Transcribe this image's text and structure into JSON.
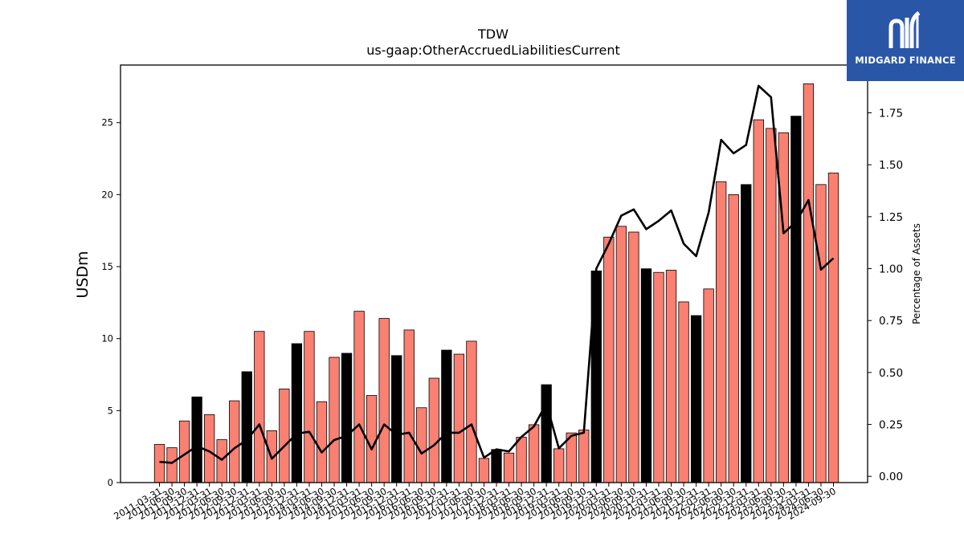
{
  "logo": {
    "name": "MIDGARD FINANCE"
  },
  "colors": {
    "bar": "#fa8072",
    "year_end_bar": "#000000",
    "line": "#000000"
  },
  "chart_data": {
    "type": "bar",
    "title": "TDW",
    "subtitle": "us-gaap:OtherAccruedLiabilitiesCurrent",
    "ylabel": "USDm",
    "y2label": "Percentage of Assets",
    "ylim": [
      0,
      29
    ],
    "y2lim": [
      -0.03,
      1.98
    ],
    "yticks": [
      0,
      5,
      10,
      15,
      20,
      25
    ],
    "y2ticks": [
      "0.00",
      "0.25",
      "0.50",
      "0.75",
      "1.00",
      "1.25",
      "1.50",
      "1.75"
    ],
    "grid": false,
    "categories": [
      "2011-03-31",
      "2011-06-30",
      "2011-09-30",
      "2011-12-31",
      "2012-03-31",
      "2012-06-30",
      "2012-09-30",
      "2012-12-31",
      "2013-03-31",
      "2013-06-30",
      "2013-09-30",
      "2013-12-31",
      "2014-03-31",
      "2014-06-30",
      "2014-09-30",
      "2014-12-31",
      "2015-03-31",
      "2015-06-30",
      "2015-09-30",
      "2015-12-31",
      "2016-03-31",
      "2016-06-30",
      "2016-09-30",
      "2016-12-31",
      "2017-03-31",
      "2017-06-30",
      "2017-09-30",
      "2017-12-31",
      "2018-03-31",
      "2018-06-30",
      "2018-09-30",
      "2018-12-31",
      "2019-03-31",
      "2019-06-30",
      "2019-09-30",
      "2019-12-31",
      "2020-03-31",
      "2020-06-30",
      "2020-09-30",
      "2020-12-31",
      "2021-03-31",
      "2021-06-30",
      "2021-09-30",
      "2021-12-31",
      "2022-03-31",
      "2022-06-30",
      "2022-09-30",
      "2022-12-31",
      "2023-03-31",
      "2023-06-30",
      "2023-09-30",
      "2023-12-31",
      "2024-03-31",
      "2024-06-30",
      "2024-09-30"
    ],
    "xtick_labels": [
      "2011-03-31",
      "2011-06-30",
      "2011-09-30",
      "2011-12-31",
      "2012-03-31",
      "2012-06-30",
      "2012-09-30",
      "2012-12-31",
      "2013-03-31",
      "2013-06-30",
      "2013-09-30",
      "2013-12-31",
      "2014-03-31",
      "2014-06-30",
      "2014-09-30",
      "2014-12-31",
      "2015-03-31",
      "2015-06-30",
      "2015-09-30",
      "2015-12-31",
      "2016-03-31",
      "2016-06-30",
      "2016-09-30",
      "2016-12-31",
      "2017-03-31",
      "2017-06-30",
      "2017-09-30",
      "2017-12-31",
      "2018-03-31",
      "2018-06-30",
      "2018-09-30",
      "2018-12-31",
      "2019-03-31",
      "2019-06-30",
      "2019-09-30",
      "2019-12-31",
      "2020-03-31",
      "2020-06-30",
      "2020-09-30",
      "2020-12-31",
      "2021-03-31",
      "2021-06-30",
      "2021-09-30",
      "2021-12-31",
      "2022-03-31",
      "2022-06-30",
      "2022-09-30",
      "2022-12-31",
      "2023-03-31",
      "2023-06-30",
      "2023-09-30",
      "2023-12-31",
      "2024-03-31",
      "2024-06-30",
      "2024-09-30"
    ],
    "series": [
      {
        "axis": "left",
        "kind": "bar",
        "values": [
          2.65,
          2.42,
          4.28,
          5.95,
          4.72,
          2.98,
          5.68,
          7.7,
          10.5,
          3.6,
          6.5,
          9.65,
          10.5,
          5.62,
          8.7,
          8.98,
          11.9,
          6.05,
          11.4,
          8.82,
          10.6,
          5.2,
          7.25,
          9.2,
          8.92,
          9.82,
          1.68,
          2.3,
          2.05,
          3.15,
          4.02,
          6.8,
          2.35,
          3.45,
          3.65,
          14.7,
          17.05,
          17.8,
          17.4,
          14.85,
          14.6,
          14.75,
          12.55,
          11.6,
          13.45,
          20.9,
          20.0,
          20.7,
          25.2,
          24.6,
          24.3,
          25.45,
          27.7,
          20.7,
          21.5
        ],
        "year_end": [
          false,
          false,
          false,
          true,
          false,
          false,
          false,
          true,
          false,
          false,
          false,
          true,
          false,
          false,
          false,
          true,
          false,
          false,
          false,
          true,
          false,
          false,
          false,
          true,
          false,
          false,
          false,
          true,
          false,
          false,
          false,
          true,
          false,
          false,
          false,
          true,
          false,
          false,
          false,
          true,
          false,
          false,
          false,
          true,
          false,
          false,
          false,
          true,
          false,
          false,
          false,
          true,
          false,
          false,
          false
        ]
      },
      {
        "axis": "right",
        "kind": "line",
        "values": [
          0.07,
          0.065,
          0.105,
          0.145,
          0.12,
          0.08,
          0.135,
          0.175,
          0.25,
          0.085,
          0.145,
          0.205,
          0.215,
          0.115,
          0.175,
          0.195,
          0.25,
          0.13,
          0.25,
          0.2,
          0.21,
          0.11,
          0.15,
          0.21,
          0.21,
          0.25,
          0.09,
          0.13,
          0.12,
          0.19,
          0.24,
          0.35,
          0.135,
          0.195,
          0.21,
          1.0,
          1.12,
          1.255,
          1.285,
          1.19,
          1.23,
          1.28,
          1.12,
          1.06,
          1.27,
          1.62,
          1.555,
          1.595,
          1.88,
          1.825,
          1.17,
          1.225,
          1.33,
          0.995,
          1.05
        ]
      }
    ]
  }
}
